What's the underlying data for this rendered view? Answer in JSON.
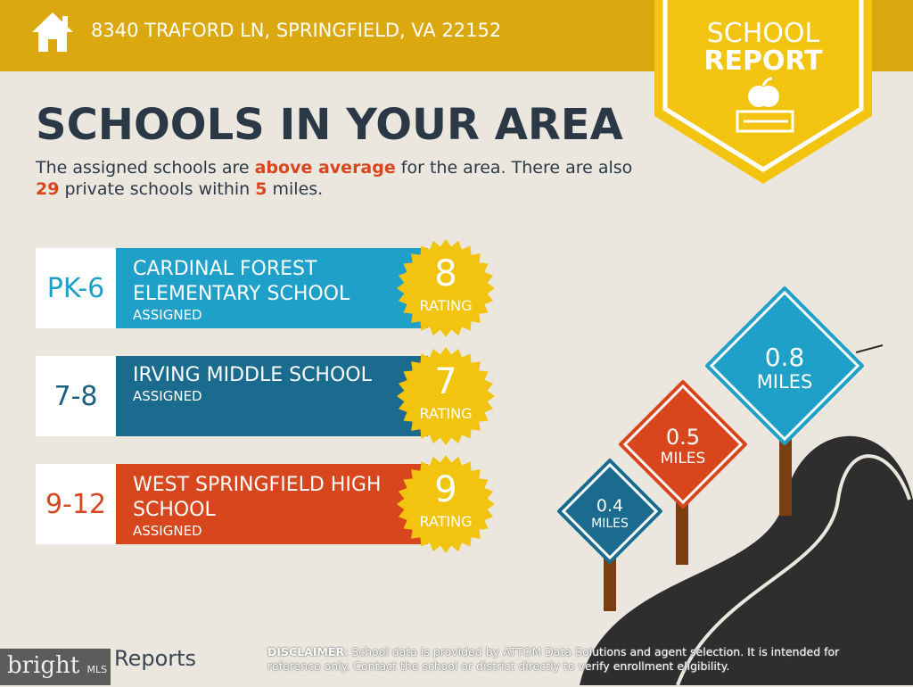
{
  "header": {
    "address": "8340 TRAFORD LN, SPRINGFIELD, VA 22152",
    "icon": "home-icon"
  },
  "badge": {
    "line1": "SCHOOL",
    "line2": "REPORT",
    "icon": "apple-books-icon"
  },
  "title": "SCHOOLS IN YOUR AREA",
  "description": {
    "p1": "The assigned schools are ",
    "hl1": "above average",
    "p2": " for the area. There are also ",
    "hl2": "29",
    "p3": " private schools within ",
    "hl3": "5",
    "p4": " miles."
  },
  "schools": [
    {
      "grade": "PK-6",
      "name": "CARDINAL FOREST ELEMENTARY SCHOOL",
      "status": "ASSIGNED",
      "rating": "8",
      "rating_label": "RATING",
      "color": "#1fa0c8",
      "grade_color": "#1fa0c8"
    },
    {
      "grade": "7-8",
      "name": "IRVING MIDDLE SCHOOL",
      "status": "ASSIGNED",
      "rating": "7",
      "rating_label": "RATING",
      "color": "#1b6b8e",
      "grade_color": "#1b5f80"
    },
    {
      "grade": "9-12",
      "name": "WEST SPRINGFIELD HIGH SCHOOL",
      "status": "ASSIGNED",
      "rating": "9",
      "rating_label": "RATING",
      "color": "#d8461d",
      "grade_color": "#d8461d"
    }
  ],
  "signs": [
    {
      "value": "0.4",
      "unit": "MILES",
      "color": "#1b6b8e"
    },
    {
      "value": "0.5",
      "unit": "MILES",
      "color": "#d8461d"
    },
    {
      "value": "0.8",
      "unit": "MILES",
      "color": "#1fa0c8"
    }
  ],
  "footer": {
    "disclaimer_label": "DISCLAIMER",
    "disclaimer": ": School data is provided by ATTOM Data Solutions and agent selection. It is intended for reference only. Contact the school or district directly to verify enrollment eligibility.",
    "logo": "bright",
    "logo_suffix": "MLS",
    "reports": "Reports"
  }
}
